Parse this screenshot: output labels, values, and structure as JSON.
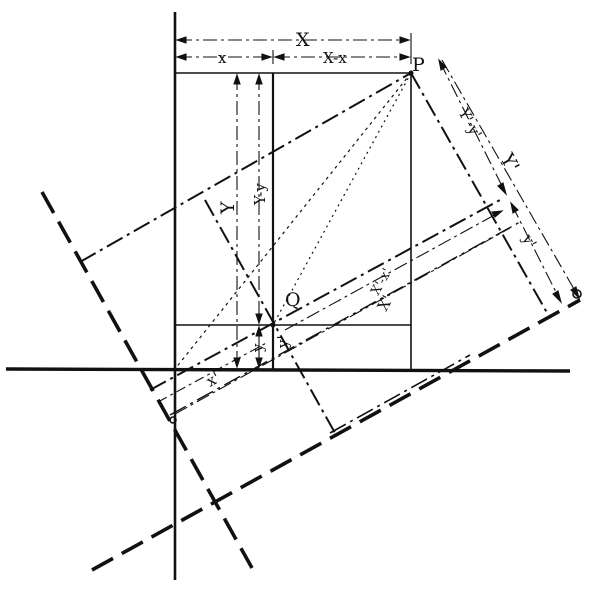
{
  "figure": {
    "labels": {
      "X_top": "X",
      "x_top": "x",
      "Xx_top": "X-x",
      "P": "P",
      "Q": "Q",
      "Y_left": "Y",
      "Yy_left": "Y-y",
      "y_left": "y",
      "x_bottom": "x'",
      "y_bottom": "y'",
      "Yy_rot": "Y'-y'",
      "Y_rot": "Y'",
      "y_rot": "y'",
      "Xx_rot": "X'-x'",
      "X_rot": "X'"
    }
  }
}
